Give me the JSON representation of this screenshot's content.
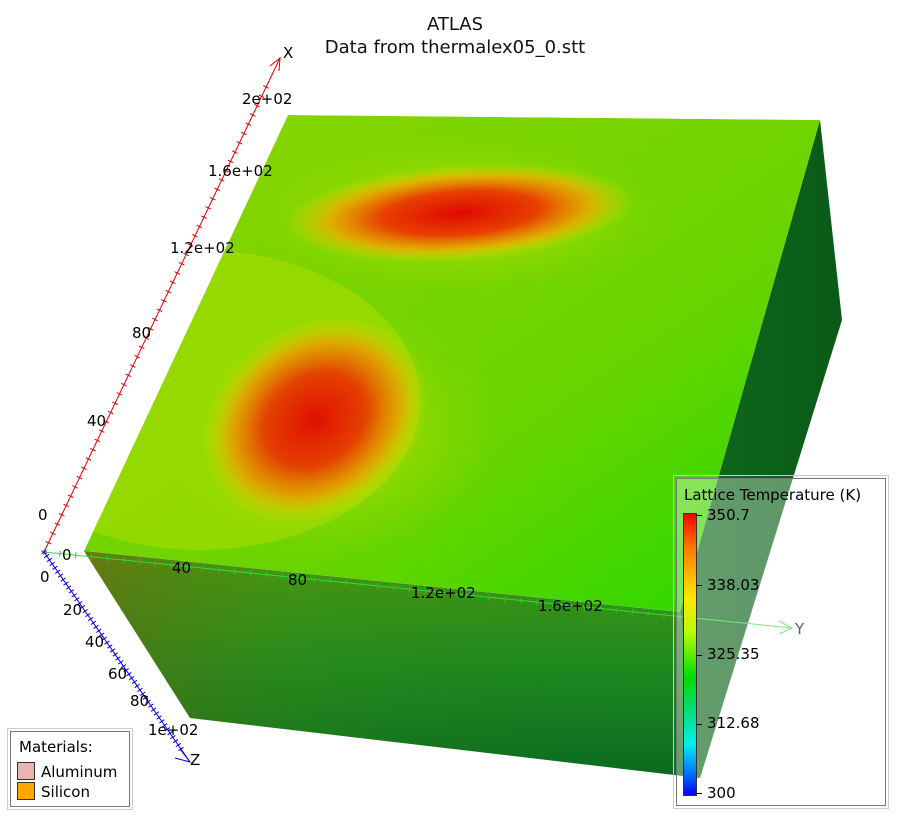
{
  "title": {
    "line1": "ATLAS",
    "line2": "Data from thermalex05_0.stt"
  },
  "axes": {
    "x": {
      "name": "X",
      "color": "#dd0000",
      "ticks": [
        "0",
        "40",
        "80",
        "1.2e+02",
        "1.6e+02",
        "2e+02"
      ]
    },
    "y": {
      "name": "Y",
      "color": "#22cc22",
      "ticks": [
        "0",
        "40",
        "80",
        "1.2e+02",
        "1.6e+02"
      ]
    },
    "z": {
      "name": "Z",
      "color": "#0000dd",
      "ticks": [
        "0",
        "20",
        "40",
        "60",
        "80",
        "1e+02"
      ]
    }
  },
  "legend": {
    "title": "Lattice Temperature (K)",
    "labels": [
      "350.7",
      "338.03",
      "325.35",
      "312.68",
      "300"
    ]
  },
  "materials": {
    "title": "Materials:",
    "items": [
      {
        "name": "Aluminum",
        "color": "#e8b4b4"
      },
      {
        "name": "Silicon",
        "color": "#ffa500"
      }
    ]
  }
}
